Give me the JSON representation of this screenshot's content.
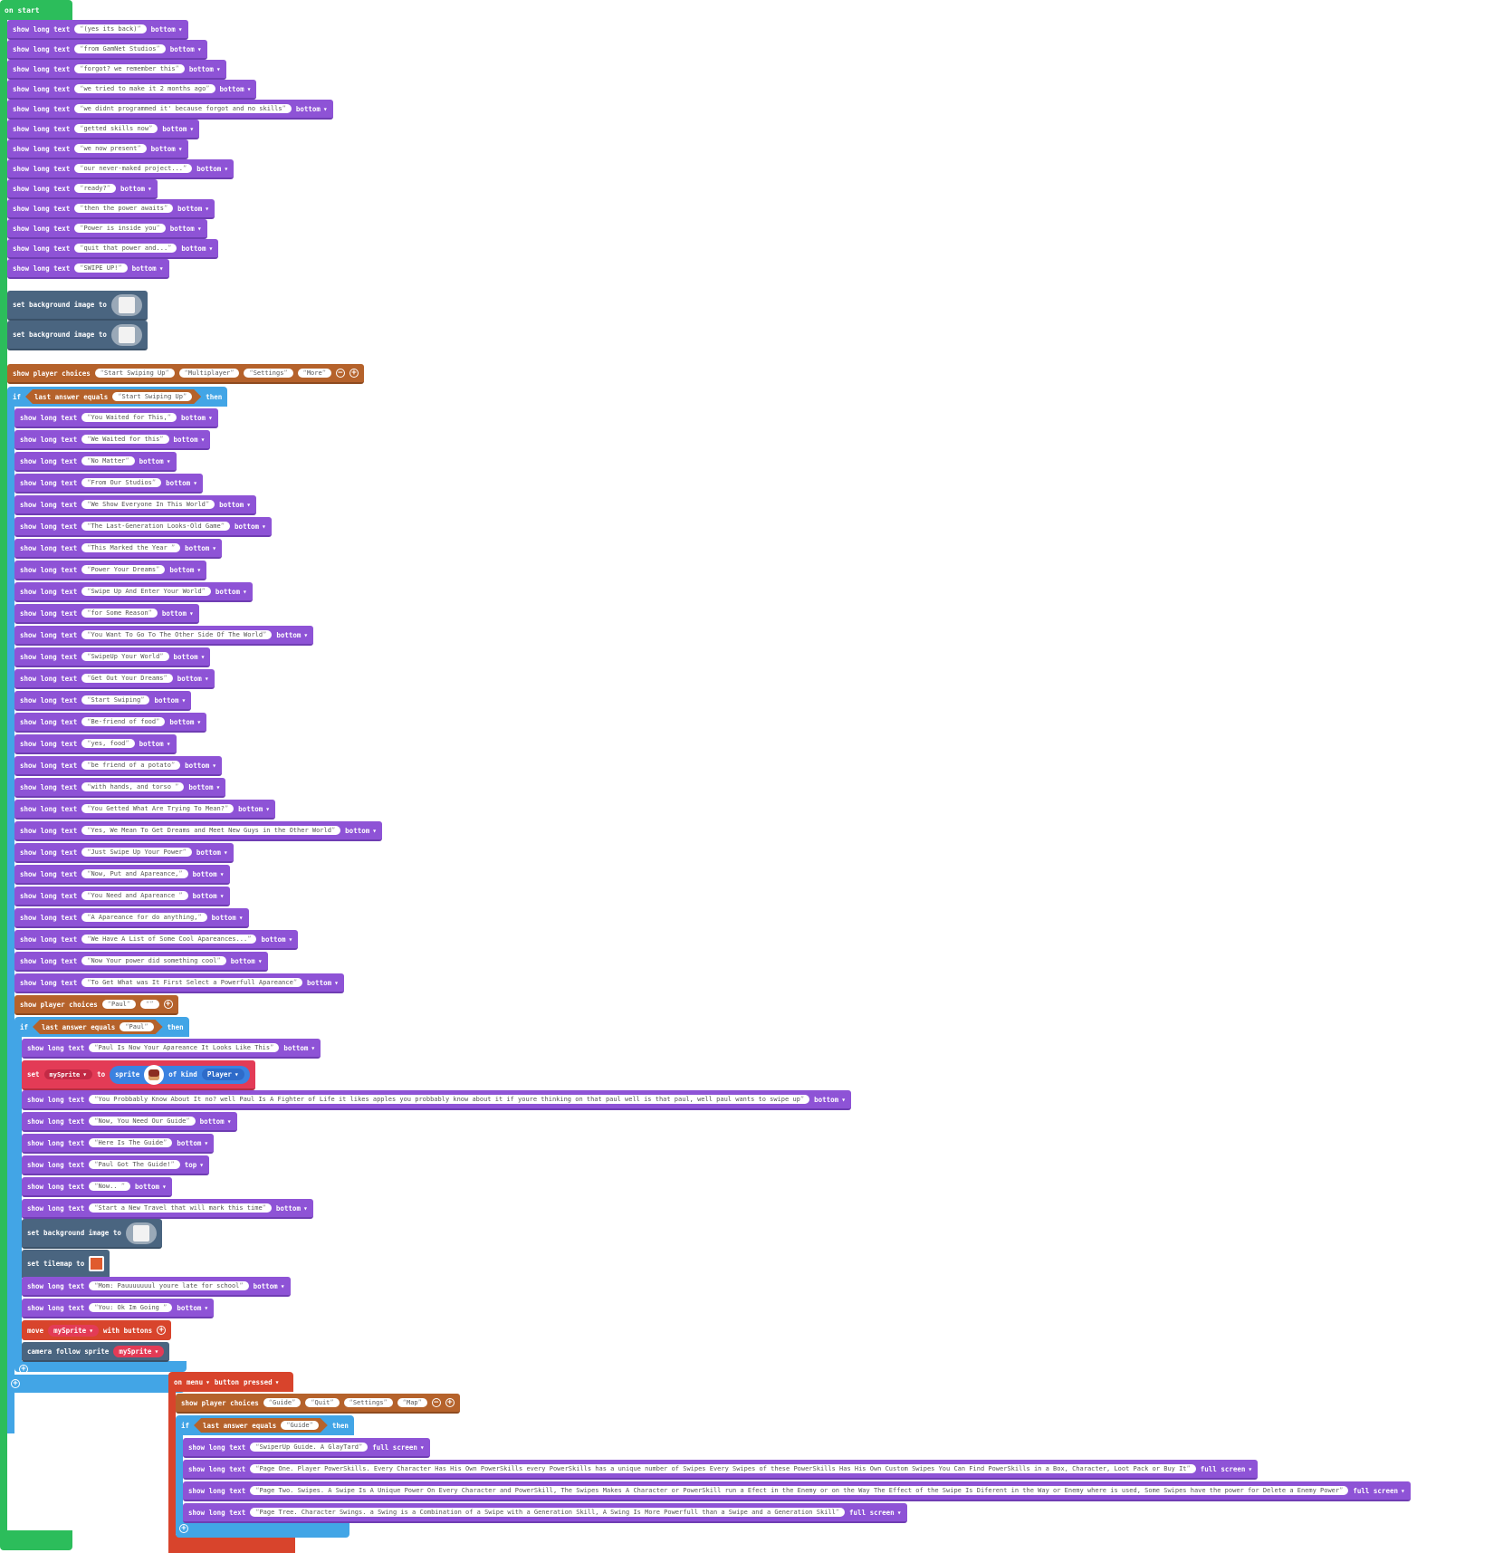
{
  "colors": {
    "events": "#2cbd5b",
    "text": "#8e53d6",
    "scene": "#4a6580",
    "game": "#b5622b",
    "logic": "#42a5e6",
    "controller": "#d8442c",
    "sprites": "#e33b56"
  },
  "labels": {
    "on_start": "on start",
    "show_long_text": "show long text",
    "set_background": "set background image to",
    "show_player_choices": "show player choices",
    "if": "if",
    "then": "then",
    "last_answer_equals": "last answer equals",
    "set": "set",
    "to": "to",
    "sprite": "sprite",
    "of_kind": "of kind",
    "set_tilemap": "set tilemap to",
    "move": "move",
    "with_buttons": "with buttons",
    "camera_follow": "camera follow sprite",
    "on": "on",
    "button": "button",
    "pressed": "pressed"
  },
  "intro_texts": [
    {
      "text": "(yes its back)",
      "pos": "bottom"
    },
    {
      "text": "from GamNet Studios",
      "pos": "bottom"
    },
    {
      "text": "forgot? we remember this",
      "pos": "bottom"
    },
    {
      "text": "we tried to make it 2 months ago",
      "pos": "bottom"
    },
    {
      "text": "we didnt programmed it' because forgot and no skills",
      "pos": "bottom"
    },
    {
      "text": "getted skills now",
      "pos": "bottom"
    },
    {
      "text": "we now present",
      "pos": "bottom"
    },
    {
      "text": "our never-maked project...",
      "pos": "bottom"
    },
    {
      "text": "ready?",
      "pos": "bottom"
    },
    {
      "text": "then the power awaits",
      "pos": "bottom"
    },
    {
      "text": "Power is inside you",
      "pos": "bottom"
    },
    {
      "text": "quit that power and...",
      "pos": "bottom"
    },
    {
      "text": "SWIPE UP!",
      "pos": "bottom"
    }
  ],
  "main_choices": [
    "Start Swiping Up",
    "Multiplayer",
    "Settings",
    "More"
  ],
  "main_if_answer": "Start Swiping Up",
  "main_if_texts": [
    {
      "text": "You Waited for This,",
      "pos": "bottom"
    },
    {
      "text": "We Waited for this",
      "pos": "bottom"
    },
    {
      "text": "No Matter",
      "pos": "bottom"
    },
    {
      "text": "From Our Studios",
      "pos": "bottom"
    },
    {
      "text": "We Show Everyone In This World",
      "pos": "bottom"
    },
    {
      "text": "The Last-Generation Looks-Old Game",
      "pos": "bottom"
    },
    {
      "text": "This Marked the Year ",
      "pos": "bottom"
    },
    {
      "text": "Power Your Dreams",
      "pos": "bottom"
    },
    {
      "text": "Swipe Up And Enter Your World",
      "pos": "bottom"
    },
    {
      "text": "for Some Reason",
      "pos": "bottom"
    },
    {
      "text": "You Want To Go To The Other Side Of The World",
      "pos": "bottom"
    },
    {
      "text": "SwipeUp Your World",
      "pos": "bottom"
    },
    {
      "text": "Get Out Your Dreams",
      "pos": "bottom"
    },
    {
      "text": "Start Swiping",
      "pos": "bottom"
    },
    {
      "text": "Be-friend of food",
      "pos": "bottom"
    },
    {
      "text": "yes, food",
      "pos": "bottom"
    },
    {
      "text": "be friend of a potato",
      "pos": "bottom"
    },
    {
      "text": "with hands, and torso ",
      "pos": "bottom"
    },
    {
      "text": "You Getted What Are Trying To Mean?",
      "pos": "bottom"
    },
    {
      "text": "Yes, We Mean To Get Dreams and Meet New Guys in the Other World",
      "pos": "bottom"
    },
    {
      "text": "Just Swipe Up Your Power",
      "pos": "bottom"
    },
    {
      "text": "Now, Put and Apareance,",
      "pos": "bottom"
    },
    {
      "text": "You Need and Apareance ",
      "pos": "bottom"
    },
    {
      "text": "A Apareance for do anything,",
      "pos": "bottom"
    },
    {
      "text": "We Have A List of Some Cool Apareances...",
      "pos": "bottom"
    },
    {
      "text": "Now Your power did something cool",
      "pos": "bottom"
    },
    {
      "text": "To Get What was It First Select a Powerfull Apareance",
      "pos": "bottom"
    }
  ],
  "paul_choices": [
    "Paul",
    ""
  ],
  "paul_if_answer": "Paul",
  "paul_text_1": {
    "text": "Paul Is Now Your Apareance It Looks Like This",
    "pos": "bottom"
  },
  "sprite_var": "mySprite",
  "sprite_kind": "Player",
  "paul_texts_2": [
    {
      "text": "You Probbably Know About It no? well Paul Is A Fighter of Life it likes apples you probbably know about it if youre thinking on that paul well is that paul, well paul wants to swipe up",
      "pos": "bottom"
    },
    {
      "text": "Now, You Need Our Guide",
      "pos": "bottom"
    },
    {
      "text": "Here Is The Guide",
      "pos": "bottom"
    },
    {
      "text": "Paul Got The Guide!",
      "pos": "top"
    },
    {
      "text": "Now.. ",
      "pos": "bottom"
    },
    {
      "text": "Start a New Travel that will mark this time",
      "pos": "bottom"
    }
  ],
  "paul_texts_3": [
    {
      "text": "Mom: Pauuuuuuul youre late for school",
      "pos": "bottom"
    },
    {
      "text": "You: Ok Im Going ",
      "pos": "bottom"
    }
  ],
  "menu_event_key": "menu",
  "menu_choices": [
    "Guide",
    "Quit",
    "Settings",
    "Map"
  ],
  "menu_if_answer": "Guide",
  "menu_texts": [
    {
      "text": "SwiperUp Guide. A GlayTard",
      "pos": "full screen"
    },
    {
      "text": "Page One. Player PowerSkills. Every Character Has His Own PowerSkills every PowerSkills has a unique number of Swipes Every Swipes of these PowerSkills Has His Own Custom Swipes You Can Find PowerSkills in a Box, Character, Loot Pack or Buy It",
      "pos": "full screen"
    },
    {
      "text": "Page Two. Swipes. A Swipe Is A Unique Power On Every Character and PowerSkill, The Swipes Makes A Character or PowerSkill run a Efect in the Enemy or on the Way The Effect of the Swipe Is Diferent in the Way or Enemy where is used, Some Swipes have the power for Delete a Enemy Power",
      "pos": "full screen"
    },
    {
      "text": "Page Tree. Character Swings. a Swing is a Combination of a Swipe with a Generation Skill, A Swing Is More Powerfull than a Swipe and a Generation Skill",
      "pos": "full screen"
    }
  ]
}
